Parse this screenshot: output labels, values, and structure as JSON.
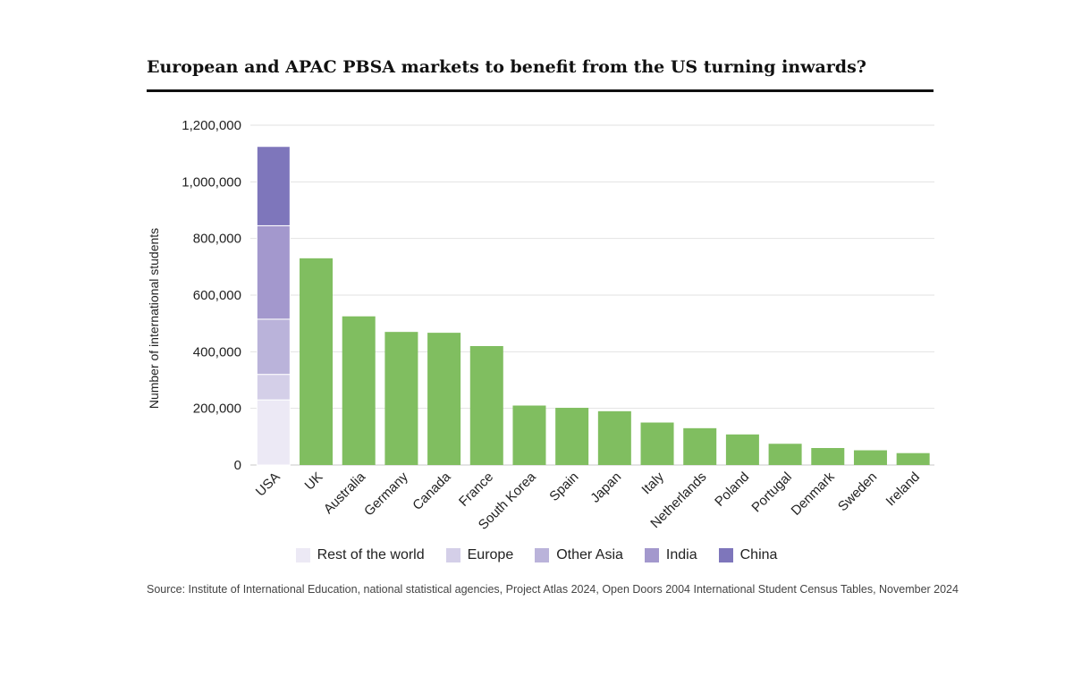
{
  "chart_data": {
    "type": "bar",
    "title": "European and APAC PBSA markets to benefit from the US turning inwards?",
    "ylabel": "Number of international students",
    "xlabel": "",
    "ylim": [
      0,
      1200000
    ],
    "y_ticks": [
      0,
      200000,
      400000,
      600000,
      800000,
      1000000,
      1200000
    ],
    "y_tick_labels": [
      "0",
      "200,000",
      "400,000",
      "600,000",
      "800,000",
      "1,000,000",
      "1,200,000"
    ],
    "grid": true,
    "legend_position": "bottom",
    "categories": [
      "USA",
      "UK",
      "Australia",
      "Germany",
      "Canada",
      "France",
      "South Korea",
      "Spain",
      "Japan",
      "Italy",
      "Netherlands",
      "Poland",
      "Portugal",
      "Denmark",
      "Sweden",
      "Ireland"
    ],
    "stacked_category": "USA",
    "stack_segments": [
      {
        "name": "Rest of the world",
        "value": 230000,
        "color": "#ECE9F5"
      },
      {
        "name": "Europe",
        "value": 90000,
        "color": "#D4CFE8"
      },
      {
        "name": "Other Asia",
        "value": 195000,
        "color": "#BAB3DA"
      },
      {
        "name": "India",
        "value": 330000,
        "color": "#A398CD"
      },
      {
        "name": "China",
        "value": 280000,
        "color": "#7E76BB"
      }
    ],
    "values": [
      null,
      730000,
      525000,
      470000,
      467000,
      420000,
      210000,
      202000,
      190000,
      150000,
      130000,
      108000,
      75000,
      60000,
      52000,
      42000
    ],
    "bar_color": "#80BE60",
    "source": "Source: Institute of International Education, national statistical agencies, Project Atlas 2024, Open Doors 2004 International Student Census Tables, November 2024"
  }
}
